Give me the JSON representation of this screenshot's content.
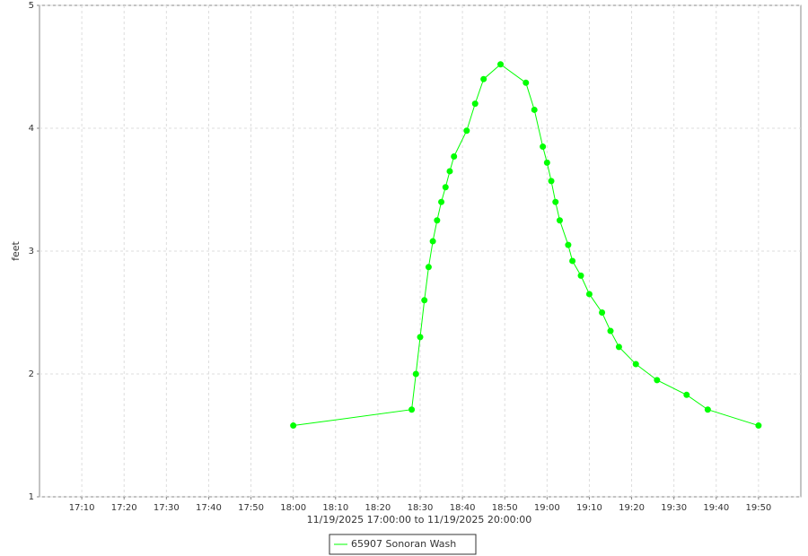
{
  "chart_data": {
    "type": "line",
    "x_label": "11/19/2025 17:00:00 to 11/19/2025 20:00:00",
    "y_label": "feet",
    "x": [
      "18:00",
      "18:28",
      "18:29",
      "18:30",
      "18:31",
      "18:32",
      "18:33",
      "18:34",
      "18:35",
      "18:36",
      "18:37",
      "18:38",
      "18:41",
      "18:43",
      "18:45",
      "18:49",
      "18:55",
      "18:57",
      "18:59",
      "19:00",
      "19:01",
      "19:02",
      "19:03",
      "19:05",
      "19:06",
      "19:08",
      "19:10",
      "19:13",
      "19:15",
      "19:17",
      "19:21",
      "19:26",
      "19:33",
      "19:38",
      "19:50"
    ],
    "series": [
      {
        "name": "65907 Sonoran Wash",
        "color": "#00ff00",
        "values": [
          1.58,
          1.71,
          2.0,
          2.3,
          2.6,
          2.87,
          3.08,
          3.25,
          3.4,
          3.52,
          3.65,
          3.77,
          3.98,
          4.2,
          4.4,
          4.52,
          4.37,
          4.15,
          3.85,
          3.72,
          3.57,
          3.4,
          3.25,
          3.05,
          2.92,
          2.8,
          2.65,
          2.5,
          2.35,
          2.22,
          2.08,
          1.95,
          1.83,
          1.71,
          1.58
        ]
      }
    ],
    "xlim": [
      "17:00",
      "20:00"
    ],
    "xticks": [
      "17:10",
      "17:20",
      "17:30",
      "17:40",
      "17:50",
      "18:00",
      "18:10",
      "18:20",
      "18:30",
      "18:40",
      "18:50",
      "19:00",
      "19:10",
      "19:20",
      "19:30",
      "19:40",
      "19:50"
    ],
    "ylim": [
      1,
      5
    ],
    "yticks": [
      1,
      2,
      3,
      4,
      5
    ],
    "grid": true
  }
}
